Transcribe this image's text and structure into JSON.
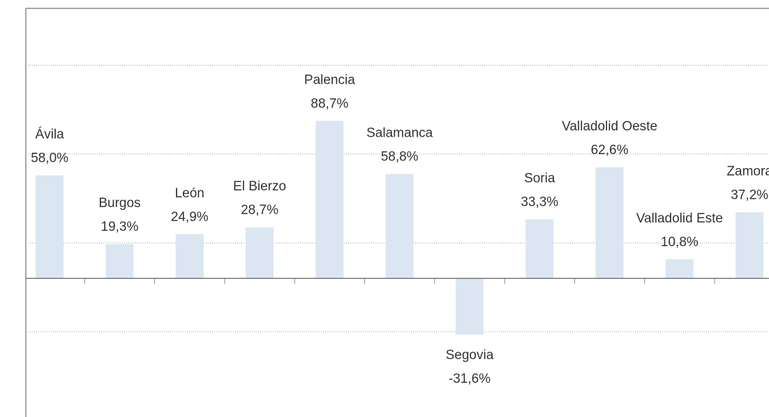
{
  "chart_data": {
    "type": "bar",
    "categories": [
      "Ávila",
      "Burgos",
      "León",
      "El Bierzo",
      "Palencia",
      "Salamanca",
      "Segovia",
      "Soria",
      "Valladolid Oeste",
      "Valladolid Este",
      "Zamora"
    ],
    "values": [
      58.0,
      19.3,
      24.9,
      28.7,
      88.7,
      58.8,
      -31.6,
      33.3,
      62.6,
      10.8,
      37.2
    ],
    "value_labels": [
      "58,0%",
      "19,3%",
      "24,9%",
      "28,7%",
      "88,7%",
      "58,8%",
      "-31,6%",
      "33,3%",
      "62,6%",
      "10,8%",
      "37,2%"
    ],
    "color": "#dce6f2",
    "ylim": [
      -78,
      152
    ],
    "yticks": [
      -30,
      20,
      70,
      120
    ],
    "grid": true
  }
}
